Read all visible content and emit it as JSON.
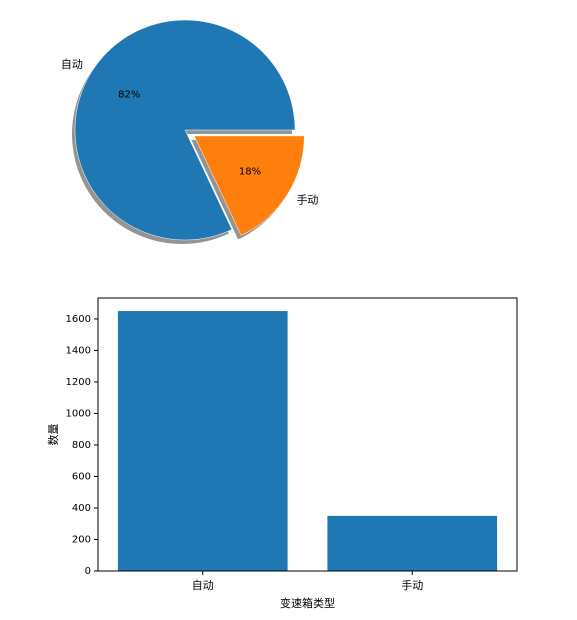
{
  "chart_data": [
    {
      "type": "pie",
      "categories": [
        "自动",
        "手动"
      ],
      "values": [
        82,
        18
      ],
      "value_labels": [
        "82%",
        "18%"
      ],
      "colors": [
        "#1f77b4",
        "#ff7f0e"
      ],
      "explode": [
        0,
        0.1
      ],
      "start_angle": 0,
      "shadow": true
    },
    {
      "type": "bar",
      "categories": [
        "自动",
        "手动"
      ],
      "values": [
        1650,
        350
      ],
      "color": "#1f77b4",
      "xlabel": "变速箱类型",
      "ylabel": "数量",
      "ylim": [
        0,
        1733
      ],
      "yticks": [
        0,
        200,
        400,
        600,
        800,
        1000,
        1200,
        1400,
        1600
      ],
      "grid": false
    }
  ]
}
